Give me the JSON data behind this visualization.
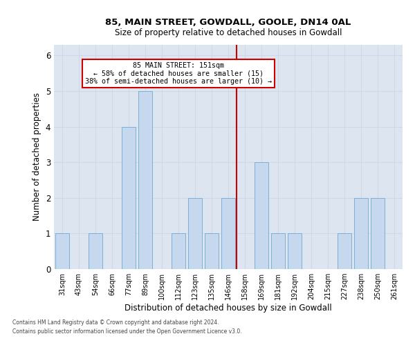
{
  "title1": "85, MAIN STREET, GOWDALL, GOOLE, DN14 0AL",
  "title2": "Size of property relative to detached houses in Gowdall",
  "xlabel": "Distribution of detached houses by size in Gowdall",
  "ylabel": "Number of detached properties",
  "categories": [
    "31sqm",
    "43sqm",
    "54sqm",
    "66sqm",
    "77sqm",
    "89sqm",
    "100sqm",
    "112sqm",
    "123sqm",
    "135sqm",
    "146sqm",
    "158sqm",
    "169sqm",
    "181sqm",
    "192sqm",
    "204sqm",
    "215sqm",
    "227sqm",
    "238sqm",
    "250sqm",
    "261sqm"
  ],
  "values": [
    1,
    0,
    1,
    0,
    4,
    5,
    0,
    1,
    2,
    1,
    2,
    0,
    3,
    1,
    1,
    0,
    0,
    1,
    2,
    2,
    0
  ],
  "bar_color": "#c5d8ed",
  "bar_edge_color": "#7aafd4",
  "grid_color": "#d0d8e8",
  "bg_color": "#dde6f0",
  "vline_color": "#cc0000",
  "vline_x": 10.5,
  "annotation_text": "85 MAIN STREET: 151sqm\n← 58% of detached houses are smaller (15)\n38% of semi-detached houses are larger (10) →",
  "annotation_box_edgecolor": "#cc0000",
  "footnote1": "Contains HM Land Registry data © Crown copyright and database right 2024.",
  "footnote2": "Contains public sector information licensed under the Open Government Licence v3.0.",
  "ylim": [
    0,
    6.3
  ],
  "yticks": [
    0,
    1,
    2,
    3,
    4,
    5,
    6
  ]
}
